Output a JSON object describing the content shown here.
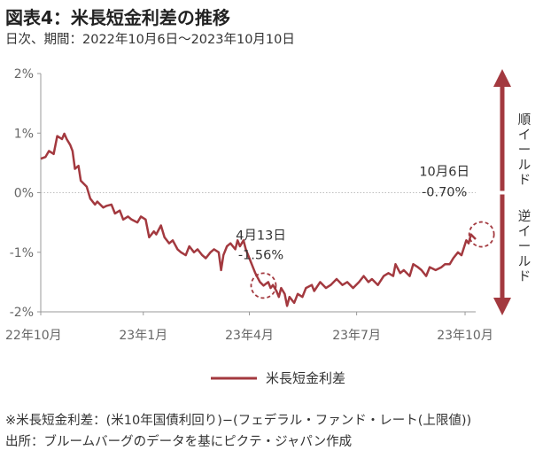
{
  "header": {
    "title": "図表4：米長短金利差の推移",
    "subtitle": "日次、期間：2022年10月6日～2023年10月10日"
  },
  "footer": {
    "note": "※米長短金利差：(米10年国債利回り)−(フェデラル・ファンド・レート(上限値))",
    "source": "出所：ブルームバーグのデータを基にピクテ・ジャパン作成"
  },
  "colors": {
    "series": "#a3393f",
    "axis": "#999999",
    "grid": "#bfbfbf"
  },
  "chart_data": {
    "type": "line",
    "title": "",
    "xlabel": "",
    "ylabel": "",
    "ylim": [
      -2,
      2
    ],
    "xlim": [
      "2022-10-06",
      "2023-10-10"
    ],
    "y_ticks": [
      2,
      1,
      0,
      -1,
      -2
    ],
    "y_tick_labels": [
      "2%",
      "1%",
      "0%",
      "-1%",
      "-2%"
    ],
    "x_tick_labels": [
      {
        "date": "2022-10-06",
        "label": "22年10月"
      },
      {
        "date": "2023-01-01",
        "label": "23年1月"
      },
      {
        "date": "2023-04-01",
        "label": "23年4月"
      },
      {
        "date": "2023-07-01",
        "label": "23年7月"
      },
      {
        "date": "2023-10-01",
        "label": "23年10月"
      }
    ],
    "series": [
      {
        "name": "米長短金利差",
        "color": "#a3393f",
        "points": [
          [
            "2022-10-06",
            0.57
          ],
          [
            "2022-10-10",
            0.6
          ],
          [
            "2022-10-13",
            0.7
          ],
          [
            "2022-10-17",
            0.65
          ],
          [
            "2022-10-20",
            0.95
          ],
          [
            "2022-10-24",
            0.9
          ],
          [
            "2022-10-26",
            0.99
          ],
          [
            "2022-10-28",
            0.9
          ],
          [
            "2022-10-31",
            0.8
          ],
          [
            "2022-11-02",
            0.7
          ],
          [
            "2022-11-04",
            0.4
          ],
          [
            "2022-11-07",
            0.45
          ],
          [
            "2022-11-09",
            0.2
          ],
          [
            "2022-11-14",
            0.1
          ],
          [
            "2022-11-17",
            -0.1
          ],
          [
            "2022-11-21",
            -0.2
          ],
          [
            "2022-11-23",
            -0.15
          ],
          [
            "2022-11-28",
            -0.25
          ],
          [
            "2022-12-01",
            -0.22
          ],
          [
            "2022-12-05",
            -0.2
          ],
          [
            "2022-12-08",
            -0.35
          ],
          [
            "2022-12-12",
            -0.3
          ],
          [
            "2022-12-15",
            -0.45
          ],
          [
            "2022-12-19",
            -0.4
          ],
          [
            "2022-12-22",
            -0.45
          ],
          [
            "2022-12-27",
            -0.5
          ],
          [
            "2022-12-30",
            -0.4
          ],
          [
            "2023-01-03",
            -0.45
          ],
          [
            "2023-01-06",
            -0.75
          ],
          [
            "2023-01-10",
            -0.65
          ],
          [
            "2023-01-12",
            -0.7
          ],
          [
            "2023-01-16",
            -0.55
          ],
          [
            "2023-01-19",
            -0.75
          ],
          [
            "2023-01-23",
            -0.85
          ],
          [
            "2023-01-26",
            -0.8
          ],
          [
            "2023-01-30",
            -0.95
          ],
          [
            "2023-02-02",
            -1.0
          ],
          [
            "2023-02-06",
            -1.05
          ],
          [
            "2023-02-09",
            -0.9
          ],
          [
            "2023-02-13",
            -1.0
          ],
          [
            "2023-02-16",
            -0.95
          ],
          [
            "2023-02-20",
            -1.05
          ],
          [
            "2023-02-23",
            -1.1
          ],
          [
            "2023-02-27",
            -1.0
          ],
          [
            "2023-03-02",
            -0.95
          ],
          [
            "2023-03-06",
            -1.0
          ],
          [
            "2023-03-08",
            -1.3
          ],
          [
            "2023-03-10",
            -1.05
          ],
          [
            "2023-03-13",
            -0.9
          ],
          [
            "2023-03-16",
            -0.85
          ],
          [
            "2023-03-20",
            -0.95
          ],
          [
            "2023-03-22",
            -0.8
          ],
          [
            "2023-03-24",
            -0.9
          ],
          [
            "2023-03-27",
            -0.8
          ],
          [
            "2023-03-29",
            -0.95
          ],
          [
            "2023-04-01",
            -1.1
          ],
          [
            "2023-04-04",
            -1.25
          ],
          [
            "2023-04-06",
            -1.35
          ],
          [
            "2023-04-10",
            -1.5
          ],
          [
            "2023-04-13",
            -1.56
          ],
          [
            "2023-04-17",
            -1.5
          ],
          [
            "2023-04-19",
            -1.6
          ],
          [
            "2023-04-21",
            -1.55
          ],
          [
            "2023-04-24",
            -1.65
          ],
          [
            "2023-04-26",
            -1.75
          ],
          [
            "2023-04-28",
            -1.6
          ],
          [
            "2023-05-01",
            -1.7
          ],
          [
            "2023-05-03",
            -1.9
          ],
          [
            "2023-05-05",
            -1.75
          ],
          [
            "2023-05-09",
            -1.85
          ],
          [
            "2023-05-12",
            -1.7
          ],
          [
            "2023-05-16",
            -1.75
          ],
          [
            "2023-05-19",
            -1.6
          ],
          [
            "2023-05-24",
            -1.55
          ],
          [
            "2023-05-26",
            -1.65
          ],
          [
            "2023-05-31",
            -1.5
          ],
          [
            "2023-06-05",
            -1.6
          ],
          [
            "2023-06-09",
            -1.55
          ],
          [
            "2023-06-14",
            -1.45
          ],
          [
            "2023-06-19",
            -1.55
          ],
          [
            "2023-06-23",
            -1.5
          ],
          [
            "2023-06-28",
            -1.6
          ],
          [
            "2023-07-03",
            -1.5
          ],
          [
            "2023-07-07",
            -1.4
          ],
          [
            "2023-07-11",
            -1.5
          ],
          [
            "2023-07-14",
            -1.45
          ],
          [
            "2023-07-19",
            -1.55
          ],
          [
            "2023-07-24",
            -1.4
          ],
          [
            "2023-07-28",
            -1.35
          ],
          [
            "2023-08-01",
            -1.4
          ],
          [
            "2023-08-03",
            -1.2
          ],
          [
            "2023-08-07",
            -1.35
          ],
          [
            "2023-08-10",
            -1.3
          ],
          [
            "2023-08-15",
            -1.4
          ],
          [
            "2023-08-18",
            -1.2
          ],
          [
            "2023-08-22",
            -1.25
          ],
          [
            "2023-08-25",
            -1.3
          ],
          [
            "2023-08-29",
            -1.4
          ],
          [
            "2023-09-01",
            -1.25
          ],
          [
            "2023-09-06",
            -1.3
          ],
          [
            "2023-09-11",
            -1.25
          ],
          [
            "2023-09-14",
            -1.2
          ],
          [
            "2023-09-18",
            -1.2
          ],
          [
            "2023-09-21",
            -1.1
          ],
          [
            "2023-09-25",
            -1.0
          ],
          [
            "2023-09-28",
            -1.05
          ],
          [
            "2023-10-02",
            -0.8
          ],
          [
            "2023-10-04",
            -0.85
          ],
          [
            "2023-10-06",
            -0.7
          ],
          [
            "2023-10-10",
            -0.78
          ]
        ]
      }
    ],
    "legend": {
      "position": "bottom",
      "label": "米長短金利差"
    },
    "annotations": [
      {
        "date_label": "4月13日",
        "value_label": "-1.56%",
        "x": "2023-04-13",
        "y": -1.56
      },
      {
        "date_label": "10月6日",
        "value_label": "-0.70%",
        "x": "2023-10-06",
        "y": -0.7
      }
    ],
    "side_labels": {
      "upper": "順イールド",
      "lower": "逆イールド"
    },
    "grid": false
  }
}
